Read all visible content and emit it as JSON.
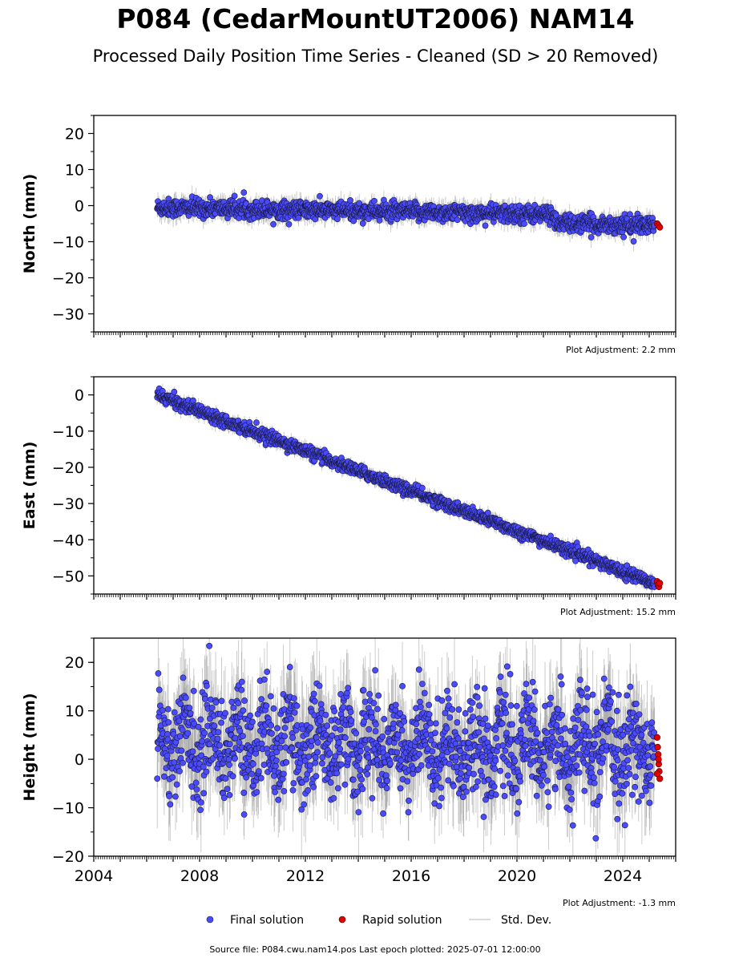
{
  "header": {
    "title": "P084 (CedarMountUT2006) NAM14",
    "subtitle": "Processed Daily Position Time Series - Cleaned (SD > 20 Removed)"
  },
  "legend": {
    "final": "Final solution",
    "rapid": "Rapid solution",
    "std": "Std. Dev."
  },
  "footer": {
    "source": "Source file: P084.cwu.nam14.pos  Last epoch plotted: 2025-07-01 12:00:00"
  },
  "colors": {
    "final": "#4a4aff",
    "rapid": "#e00000",
    "std": "#9a9a9a"
  },
  "chart_data": [
    {
      "type": "scatter",
      "ylabel": "North (mm)",
      "xlim": [
        2004,
        2026
      ],
      "ylim": [
        -35,
        25
      ],
      "yticks": [
        -30,
        -20,
        -10,
        0,
        10,
        20
      ],
      "adjustment": "Plot Adjustment: 2.2 mm",
      "series": [
        {
          "name": "Final solution",
          "start": 2006.4,
          "end": 2025.2,
          "trend": [
            [
              2006.4,
              -0.5
            ],
            [
              2021.4,
              -2.5
            ],
            [
              2021.5,
              -5.0
            ],
            [
              2025.2,
              -5.5
            ]
          ],
          "scatter_sd": 1.2
        },
        {
          "name": "Rapid solution",
          "points": [
            [
              2025.3,
              -5.0
            ],
            [
              2025.35,
              -5.5
            ],
            [
              2025.4,
              -6.0
            ]
          ]
        }
      ]
    },
    {
      "type": "scatter",
      "ylabel": "East (mm)",
      "xlim": [
        2004,
        2026
      ],
      "ylim": [
        -55,
        5
      ],
      "yticks": [
        -50,
        -40,
        -30,
        -20,
        -10,
        0
      ],
      "adjustment": "Plot Adjustment: 15.2 mm",
      "series": [
        {
          "name": "Final solution",
          "start": 2006.4,
          "end": 2025.2,
          "trend": [
            [
              2006.4,
              0.0
            ],
            [
              2025.2,
              -52.0
            ]
          ],
          "scatter_sd": 0.8
        },
        {
          "name": "Rapid solution",
          "points": [
            [
              2025.3,
              -51.5
            ],
            [
              2025.33,
              -52.5
            ],
            [
              2025.37,
              -53.0
            ],
            [
              2025.4,
              -52.0
            ]
          ]
        }
      ]
    },
    {
      "type": "scatter",
      "ylabel": "Height (mm)",
      "xlim": [
        2004,
        2026
      ],
      "ylim": [
        -20,
        25
      ],
      "yticks": [
        -20,
        -10,
        0,
        10,
        20
      ],
      "xticks": [
        2004,
        2008,
        2012,
        2016,
        2020,
        2024
      ],
      "adjustment": "Plot Adjustment: -1.3 mm",
      "series": [
        {
          "name": "Final solution",
          "start": 2006.4,
          "end": 2025.2,
          "trend": [
            [
              2006.4,
              4.0
            ],
            [
              2025.2,
              2.0
            ]
          ],
          "scatter_sd": 5.0
        },
        {
          "name": "Rapid solution",
          "points": [
            [
              2025.3,
              4.5
            ],
            [
              2025.32,
              2.5
            ],
            [
              2025.34,
              1.0
            ],
            [
              2025.36,
              -1.0
            ],
            [
              2025.38,
              -2.5
            ],
            [
              2025.4,
              -4.0
            ],
            [
              2025.3,
              -3.0
            ],
            [
              2025.35,
              0.0
            ]
          ]
        }
      ]
    }
  ]
}
